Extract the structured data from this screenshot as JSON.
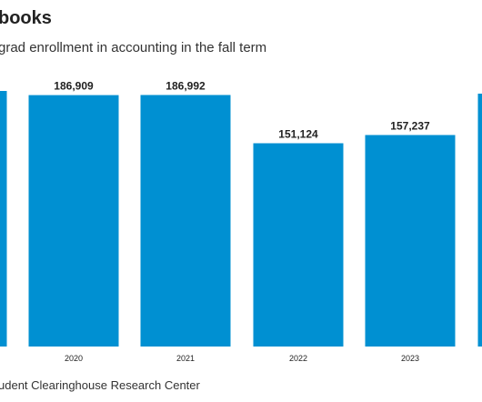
{
  "header": {
    "title": "books",
    "subtitle": "grad enrollment in accounting in the fall term"
  },
  "footer": {
    "source": "udent Clearinghouse Research Center"
  },
  "colors": {
    "bar": "#0090d2"
  },
  "chart_data": {
    "type": "bar",
    "title": "books",
    "subtitle": "grad enrollment in accounting in the fall term",
    "xlabel": "",
    "ylabel": "",
    "categories": [
      "",
      "2020",
      "2021",
      "2022",
      "2023",
      ""
    ],
    "values": [
      190000,
      186909,
      186992,
      151124,
      157237,
      188000
    ],
    "value_labels": [
      "",
      "186,909",
      "186,992",
      "151,124",
      "157,237",
      ""
    ],
    "ylim": [
      0,
      190000
    ],
    "grid": false,
    "legend": "none"
  }
}
